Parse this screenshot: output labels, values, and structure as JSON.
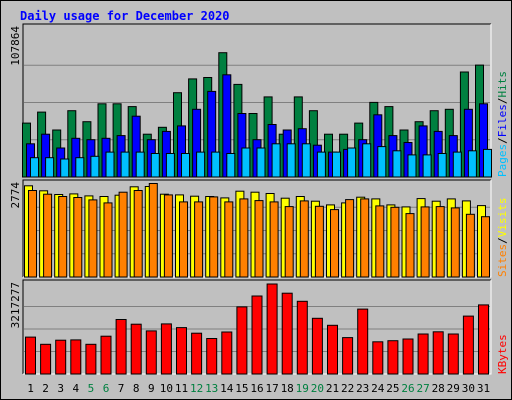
{
  "chart_data": {
    "type": "bar",
    "title": "Daily usage for December 2020",
    "colors": {
      "background": "#c0c0c0",
      "title": "#0000ff",
      "hits": "#008040",
      "files": "#0000ff",
      "pages": "#00c0ff",
      "visits": "#ffff00",
      "sites": "#ff8000",
      "kbytes": "#ff0000",
      "weekend_label": "#008040",
      "weekday_label": "#000000",
      "gridline": "#808080"
    },
    "categories": [
      "1",
      "2",
      "3",
      "4",
      "5",
      "6",
      "7",
      "8",
      "9",
      "10",
      "11",
      "12",
      "13",
      "14",
      "15",
      "16",
      "17",
      "18",
      "19",
      "20",
      "21",
      "22",
      "23",
      "24",
      "25",
      "26",
      "27",
      "28",
      "29",
      "30",
      "31"
    ],
    "weekend_days": [
      "5",
      "6",
      "12",
      "13",
      "19",
      "20",
      "26",
      "27"
    ],
    "panels": [
      {
        "id": "usage",
        "ytick": "107864",
        "ylim": [
          0,
          107864
        ],
        "legend": [
          "Pages",
          "/",
          "Files",
          "/",
          "Hits"
        ],
        "series": [
          {
            "name": "Hits",
            "values": [
              39000,
              47000,
              34000,
              48000,
              40000,
              53000,
              53000,
              51000,
              31000,
              36000,
              61000,
              71000,
              72000,
              90000,
              67000,
              46000,
              58000,
              31000,
              58000,
              48000,
              31000,
              31000,
              39000,
              54000,
              51000,
              34000,
              40000,
              48000,
              49000,
              76000,
              81000
            ]
          },
          {
            "name": "Files",
            "values": [
              24000,
              31000,
              21000,
              28000,
              27000,
              28000,
              30000,
              44000,
              27000,
              33000,
              37000,
              49000,
              62000,
              74000,
              46000,
              27000,
              38000,
              34000,
              35000,
              23000,
              18000,
              20000,
              27000,
              45000,
              30000,
              25000,
              37000,
              33000,
              30000,
              49000,
              53000
            ]
          },
          {
            "name": "Pages",
            "values": [
              14000,
              14000,
              13000,
              14000,
              15000,
              18000,
              18000,
              18000,
              17000,
              17000,
              17000,
              18000,
              18000,
              17000,
              21000,
              21000,
              24000,
              24000,
              24000,
              18000,
              18000,
              21000,
              24000,
              22000,
              19000,
              16000,
              16000,
              17000,
              18000,
              19000,
              20000
            ]
          }
        ]
      },
      {
        "id": "visits",
        "ytick": "2774",
        "ylim": [
          0,
          2774
        ],
        "legend": [
          "Sites",
          "/",
          "Visits"
        ],
        "series": [
          {
            "name": "Visits",
            "values": [
              2720,
              2570,
              2460,
              2480,
              2420,
              2400,
              2440,
              2690,
              2700,
              2470,
              2450,
              2410,
              2400,
              2360,
              2560,
              2530,
              2490,
              2350,
              2400,
              2260,
              2150,
              2210,
              2380,
              2330,
              2150,
              2090,
              2340,
              2260,
              2330,
              2270,
              2130
            ]
          },
          {
            "name": "Sites",
            "values": [
              2580,
              2470,
              2400,
              2370,
              2300,
              2210,
              2530,
              2580,
              2790,
              2450,
              2240,
              2240,
              2390,
              2240,
              2330,
              2280,
              2240,
              2100,
              2270,
              2110,
              2010,
              2310,
              2330,
              2120,
              2080,
              1890,
              2090,
              2100,
              2060,
              1870,
              1800
            ]
          }
        ]
      },
      {
        "id": "kbytes",
        "ytick": "3217277",
        "ylim": [
          0,
          3217277
        ],
        "legend": [
          "KBytes"
        ],
        "series": [
          {
            "name": "KBytes",
            "values": [
              1320000,
              1060000,
              1210000,
              1220000,
              1060000,
              1350000,
              1950000,
              1780000,
              1540000,
              1790000,
              1660000,
              1460000,
              1270000,
              1500000,
              2400000,
              2790000,
              3217277,
              2890000,
              2600000,
              1990000,
              1740000,
              1300000,
              2320000,
              1150000,
              1190000,
              1250000,
              1430000,
              1510000,
              1430000,
              2070000,
              2470000
            ]
          }
        ]
      }
    ]
  }
}
